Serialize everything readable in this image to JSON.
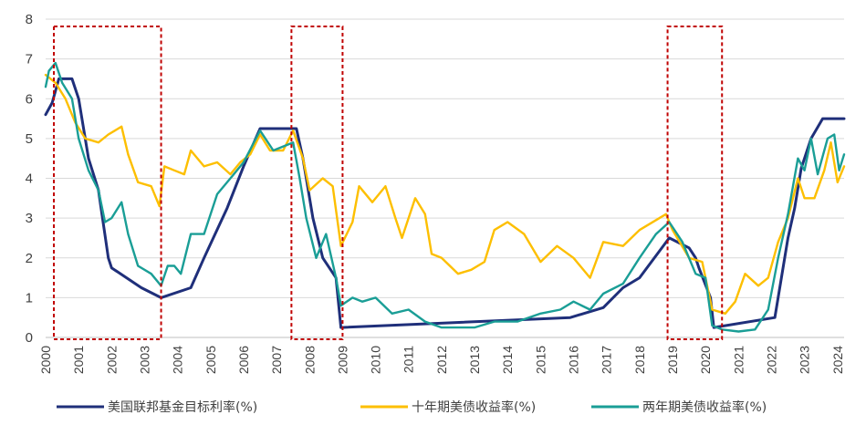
{
  "chart_data": {
    "type": "line",
    "title": "",
    "xlabel": "",
    "ylabel": "",
    "xlim": [
      2000,
      2024.2
    ],
    "ylim": [
      0,
      8
    ],
    "yticks": [
      0,
      1,
      2,
      3,
      4,
      5,
      6,
      7,
      8
    ],
    "xticks": [
      "2000",
      "2001",
      "2002",
      "2003",
      "2004",
      "2005",
      "2006",
      "2007",
      "2008",
      "2009",
      "2010",
      "2011",
      "2012",
      "2013",
      "2014",
      "2015",
      "2016",
      "2017",
      "2018",
      "2019",
      "2020",
      "2021",
      "2022",
      "2023",
      "2024"
    ],
    "grid": "horizontal",
    "legend_position": "bottom",
    "series": [
      {
        "name": "美国联邦基金目标利率(%)",
        "color": "#1f2f7a",
        "points": [
          [
            2000.0,
            5.6
          ],
          [
            2000.2,
            5.9
          ],
          [
            2000.4,
            6.5
          ],
          [
            2000.8,
            6.5
          ],
          [
            2001.0,
            6.0
          ],
          [
            2001.3,
            4.5
          ],
          [
            2001.6,
            3.7
          ],
          [
            2001.9,
            2.0
          ],
          [
            2002.0,
            1.75
          ],
          [
            2002.9,
            1.25
          ],
          [
            2003.5,
            1.0
          ],
          [
            2004.4,
            1.25
          ],
          [
            2004.8,
            2.0
          ],
          [
            2005.5,
            3.25
          ],
          [
            2006.0,
            4.3
          ],
          [
            2006.5,
            5.25
          ],
          [
            2007.6,
            5.25
          ],
          [
            2007.8,
            4.5
          ],
          [
            2008.1,
            3.0
          ],
          [
            2008.4,
            2.0
          ],
          [
            2008.8,
            1.5
          ],
          [
            2008.95,
            0.25
          ],
          [
            2015.9,
            0.5
          ],
          [
            2016.9,
            0.75
          ],
          [
            2017.5,
            1.25
          ],
          [
            2018.0,
            1.5
          ],
          [
            2018.9,
            2.5
          ],
          [
            2019.5,
            2.25
          ],
          [
            2019.7,
            2.0
          ],
          [
            2019.8,
            1.75
          ],
          [
            2020.15,
            1.0
          ],
          [
            2020.25,
            0.25
          ],
          [
            2022.1,
            0.5
          ],
          [
            2022.3,
            1.5
          ],
          [
            2022.5,
            2.5
          ],
          [
            2022.7,
            3.25
          ],
          [
            2022.9,
            4.25
          ],
          [
            2023.2,
            5.0
          ],
          [
            2023.55,
            5.5
          ],
          [
            2024.2,
            5.5
          ]
        ]
      },
      {
        "name": "十年期美债收益率(%)",
        "color": "#fdbf00",
        "points": [
          [
            2000.0,
            6.6
          ],
          [
            2000.3,
            6.4
          ],
          [
            2000.6,
            6.0
          ],
          [
            2000.9,
            5.4
          ],
          [
            2001.2,
            5.0
          ],
          [
            2001.6,
            4.9
          ],
          [
            2001.9,
            5.1
          ],
          [
            2002.3,
            5.3
          ],
          [
            2002.5,
            4.6
          ],
          [
            2002.8,
            3.9
          ],
          [
            2003.2,
            3.8
          ],
          [
            2003.45,
            3.3
          ],
          [
            2003.6,
            4.3
          ],
          [
            2003.9,
            4.2
          ],
          [
            2004.2,
            4.1
          ],
          [
            2004.4,
            4.7
          ],
          [
            2004.8,
            4.3
          ],
          [
            2005.2,
            4.4
          ],
          [
            2005.6,
            4.1
          ],
          [
            2005.9,
            4.4
          ],
          [
            2006.2,
            4.6
          ],
          [
            2006.5,
            5.1
          ],
          [
            2006.8,
            4.7
          ],
          [
            2007.2,
            4.7
          ],
          [
            2007.5,
            5.2
          ],
          [
            2007.8,
            4.5
          ],
          [
            2008.0,
            3.7
          ],
          [
            2008.4,
            4.0
          ],
          [
            2008.7,
            3.8
          ],
          [
            2008.95,
            2.3
          ],
          [
            2009.3,
            2.9
          ],
          [
            2009.5,
            3.8
          ],
          [
            2009.9,
            3.4
          ],
          [
            2010.3,
            3.8
          ],
          [
            2010.6,
            3.0
          ],
          [
            2010.8,
            2.5
          ],
          [
            2011.2,
            3.5
          ],
          [
            2011.5,
            3.1
          ],
          [
            2011.7,
            2.1
          ],
          [
            2012.0,
            2.0
          ],
          [
            2012.5,
            1.6
          ],
          [
            2012.9,
            1.7
          ],
          [
            2013.3,
            1.9
          ],
          [
            2013.6,
            2.7
          ],
          [
            2014.0,
            2.9
          ],
          [
            2014.5,
            2.6
          ],
          [
            2015.0,
            1.9
          ],
          [
            2015.5,
            2.3
          ],
          [
            2016.0,
            2.0
          ],
          [
            2016.5,
            1.5
          ],
          [
            2016.9,
            2.4
          ],
          [
            2017.5,
            2.3
          ],
          [
            2018.0,
            2.7
          ],
          [
            2018.8,
            3.1
          ],
          [
            2019.0,
            2.7
          ],
          [
            2019.5,
            2.0
          ],
          [
            2019.9,
            1.9
          ],
          [
            2020.2,
            0.7
          ],
          [
            2020.6,
            0.6
          ],
          [
            2020.9,
            0.9
          ],
          [
            2021.2,
            1.6
          ],
          [
            2021.6,
            1.3
          ],
          [
            2021.9,
            1.5
          ],
          [
            2022.2,
            2.4
          ],
          [
            2022.5,
            3.0
          ],
          [
            2022.8,
            4.0
          ],
          [
            2023.0,
            3.5
          ],
          [
            2023.3,
            3.5
          ],
          [
            2023.6,
            4.2
          ],
          [
            2023.8,
            4.9
          ],
          [
            2024.0,
            3.9
          ],
          [
            2024.2,
            4.3
          ]
        ]
      },
      {
        "name": "两年期美债收益率(%)",
        "color": "#1a9e96",
        "points": [
          [
            2000.0,
            6.3
          ],
          [
            2000.1,
            6.7
          ],
          [
            2000.3,
            6.9
          ],
          [
            2000.5,
            6.4
          ],
          [
            2000.8,
            6.0
          ],
          [
            2001.0,
            5.0
          ],
          [
            2001.3,
            4.2
          ],
          [
            2001.6,
            3.7
          ],
          [
            2001.8,
            2.9
          ],
          [
            2002.0,
            3.0
          ],
          [
            2002.3,
            3.4
          ],
          [
            2002.5,
            2.6
          ],
          [
            2002.8,
            1.8
          ],
          [
            2003.2,
            1.6
          ],
          [
            2003.5,
            1.3
          ],
          [
            2003.7,
            1.8
          ],
          [
            2003.9,
            1.8
          ],
          [
            2004.1,
            1.6
          ],
          [
            2004.4,
            2.6
          ],
          [
            2004.8,
            2.6
          ],
          [
            2005.2,
            3.6
          ],
          [
            2005.6,
            4.0
          ],
          [
            2006.0,
            4.4
          ],
          [
            2006.5,
            5.2
          ],
          [
            2006.9,
            4.7
          ],
          [
            2007.2,
            4.8
          ],
          [
            2007.5,
            4.9
          ],
          [
            2007.7,
            4.0
          ],
          [
            2007.9,
            3.0
          ],
          [
            2008.2,
            2.0
          ],
          [
            2008.5,
            2.6
          ],
          [
            2008.8,
            1.5
          ],
          [
            2008.95,
            0.8
          ],
          [
            2009.3,
            1.0
          ],
          [
            2009.6,
            0.9
          ],
          [
            2010.0,
            1.0
          ],
          [
            2010.5,
            0.6
          ],
          [
            2011.0,
            0.7
          ],
          [
            2011.5,
            0.4
          ],
          [
            2012.0,
            0.25
          ],
          [
            2013.0,
            0.25
          ],
          [
            2013.6,
            0.4
          ],
          [
            2014.3,
            0.4
          ],
          [
            2015.0,
            0.6
          ],
          [
            2015.6,
            0.7
          ],
          [
            2016.0,
            0.9
          ],
          [
            2016.5,
            0.7
          ],
          [
            2016.9,
            1.1
          ],
          [
            2017.5,
            1.35
          ],
          [
            2018.0,
            2.0
          ],
          [
            2018.5,
            2.6
          ],
          [
            2018.9,
            2.9
          ],
          [
            2019.3,
            2.4
          ],
          [
            2019.7,
            1.6
          ],
          [
            2020.0,
            1.5
          ],
          [
            2020.2,
            0.3
          ],
          [
            2020.5,
            0.2
          ],
          [
            2021.0,
            0.15
          ],
          [
            2021.5,
            0.2
          ],
          [
            2021.9,
            0.7
          ],
          [
            2022.2,
            2.0
          ],
          [
            2022.5,
            3.1
          ],
          [
            2022.8,
            4.5
          ],
          [
            2023.0,
            4.2
          ],
          [
            2023.2,
            5.0
          ],
          [
            2023.4,
            4.1
          ],
          [
            2023.7,
            5.0
          ],
          [
            2023.9,
            5.1
          ],
          [
            2024.05,
            4.2
          ],
          [
            2024.2,
            4.6
          ]
        ]
      }
    ],
    "highlight_ranges": [
      [
        2000.25,
        2003.5
      ],
      [
        2007.45,
        2009.0
      ],
      [
        2018.85,
        2020.5
      ]
    ],
    "highlight_color": "#c00000"
  }
}
